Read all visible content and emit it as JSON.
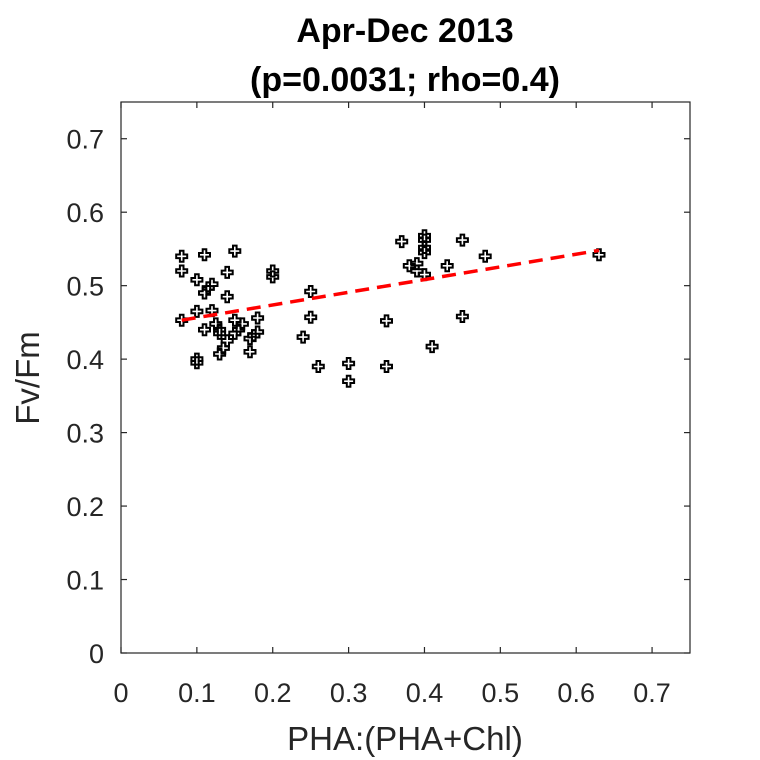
{
  "chart_data": {
    "type": "scatter",
    "title": "Apr-Dec 2013",
    "subtitle": "(p=0.0031; rho=0.4)",
    "xlabel": "PHA:(PHA+Chl)",
    "ylabel": "Fv/Fm",
    "xlim": [
      0,
      0.75
    ],
    "ylim": [
      0,
      0.75
    ],
    "xticks": [
      "0",
      "0.1",
      "0.2",
      "0.3",
      "0.4",
      "0.5",
      "0.6",
      "0.7"
    ],
    "yticks": [
      "0",
      "0.1",
      "0.2",
      "0.3",
      "0.4",
      "0.5",
      "0.6",
      "0.7"
    ],
    "grid": false,
    "marker_color": "#000000",
    "trend_color": "#ff0000",
    "points": [
      [
        0.08,
        0.54
      ],
      [
        0.08,
        0.52
      ],
      [
        0.08,
        0.453
      ],
      [
        0.1,
        0.508
      ],
      [
        0.1,
        0.465
      ],
      [
        0.1,
        0.4
      ],
      [
        0.1,
        0.395
      ],
      [
        0.11,
        0.542
      ],
      [
        0.11,
        0.49
      ],
      [
        0.11,
        0.44
      ],
      [
        0.115,
        0.497
      ],
      [
        0.12,
        0.502
      ],
      [
        0.12,
        0.466
      ],
      [
        0.125,
        0.448
      ],
      [
        0.13,
        0.44
      ],
      [
        0.13,
        0.435
      ],
      [
        0.13,
        0.407
      ],
      [
        0.135,
        0.415
      ],
      [
        0.14,
        0.518
      ],
      [
        0.14,
        0.485
      ],
      [
        0.14,
        0.425
      ],
      [
        0.15,
        0.547
      ],
      [
        0.15,
        0.453
      ],
      [
        0.15,
        0.435
      ],
      [
        0.155,
        0.44
      ],
      [
        0.16,
        0.448
      ],
      [
        0.17,
        0.428
      ],
      [
        0.17,
        0.41
      ],
      [
        0.175,
        0.432
      ],
      [
        0.18,
        0.456
      ],
      [
        0.18,
        0.437
      ],
      [
        0.2,
        0.52
      ],
      [
        0.2,
        0.512
      ],
      [
        0.24,
        0.43
      ],
      [
        0.25,
        0.492
      ],
      [
        0.25,
        0.457
      ],
      [
        0.26,
        0.39
      ],
      [
        0.3,
        0.394
      ],
      [
        0.3,
        0.37
      ],
      [
        0.35,
        0.452
      ],
      [
        0.35,
        0.39
      ],
      [
        0.37,
        0.56
      ],
      [
        0.38,
        0.527
      ],
      [
        0.39,
        0.53
      ],
      [
        0.39,
        0.52
      ],
      [
        0.4,
        0.568
      ],
      [
        0.4,
        0.562
      ],
      [
        0.4,
        0.552
      ],
      [
        0.4,
        0.545
      ],
      [
        0.4,
        0.515
      ],
      [
        0.41,
        0.417
      ],
      [
        0.43,
        0.527
      ],
      [
        0.45,
        0.562
      ],
      [
        0.45,
        0.458
      ],
      [
        0.48,
        0.54
      ],
      [
        0.63,
        0.542
      ]
    ],
    "trend_line": {
      "x": [
        0.08,
        0.63
      ],
      "y": [
        0.453,
        0.548
      ]
    }
  }
}
